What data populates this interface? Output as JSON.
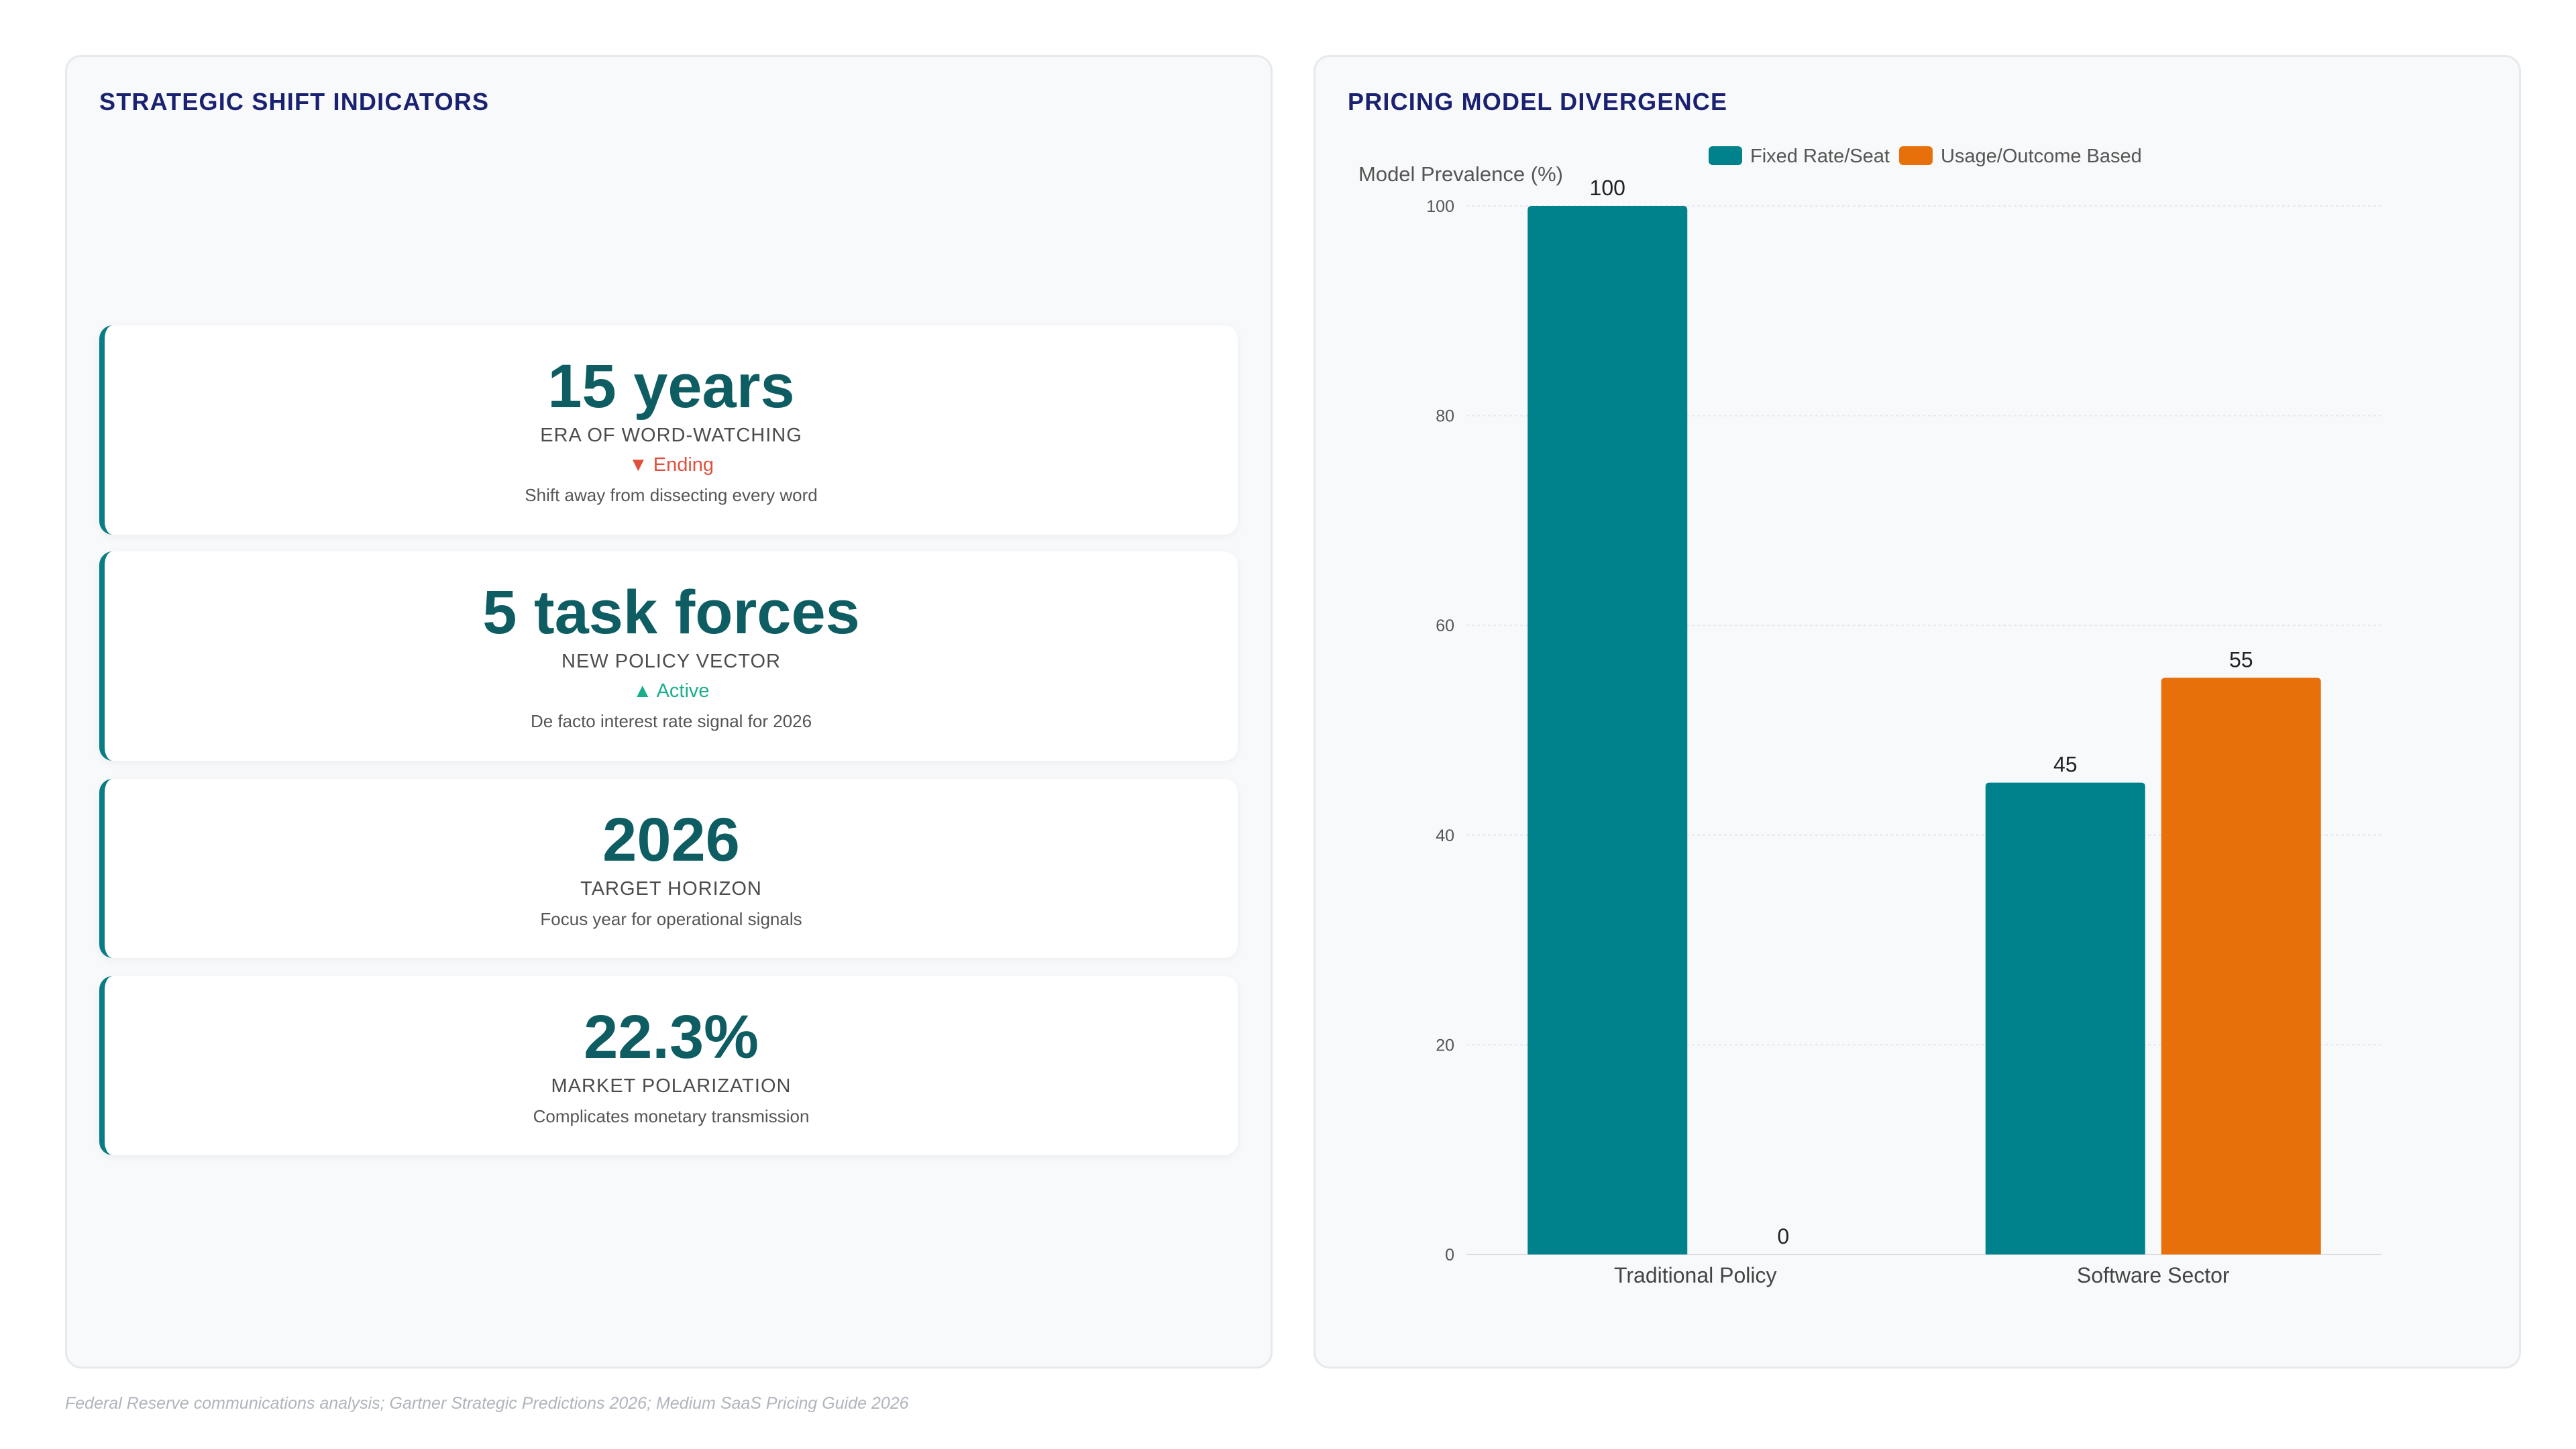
{
  "left_panel": {
    "title": "STRATEGIC SHIFT INDICATORS",
    "kpis": [
      {
        "value": "15 years",
        "label": "ERA OF WORD-WATCHING",
        "trend": "▼ Ending",
        "trend_direction": "down",
        "note": "Shift away from dissecting every word"
      },
      {
        "value": "5 task forces",
        "label": "NEW POLICY VECTOR",
        "trend": "▲ Active",
        "trend_direction": "up",
        "note": "De facto interest rate signal for 2026"
      },
      {
        "value": "2026",
        "label": "TARGET HORIZON",
        "note": "Focus year for operational signals"
      },
      {
        "value": "22.3%",
        "label": "MARKET POLARIZATION",
        "note": "Complicates monetary transmission"
      }
    ]
  },
  "right_panel": {
    "title": "PRICING MODEL DIVERGENCE"
  },
  "chart_data": {
    "type": "bar",
    "title": "PRICING MODEL DIVERGENCE",
    "categories": [
      "Traditional Policy",
      "Software Sector"
    ],
    "series": [
      {
        "name": "Fixed Rate/Seat",
        "color": "#00828c",
        "values": [
          100,
          45
        ]
      },
      {
        "name": "Usage/Outcome Based",
        "color": "#e8700b",
        "values": [
          0,
          55
        ]
      }
    ],
    "xlabel": "",
    "ylabel": "Model Prevalence (%)",
    "ylim": [
      0,
      100
    ],
    "yticks": [
      0,
      20,
      40,
      60,
      80,
      100
    ],
    "data_labels": true,
    "grid": true,
    "legend_position": "top-center"
  },
  "source": "Federal Reserve communications analysis; Gartner Strategic Predictions 2026; Medium SaaS Pricing Guide 2026"
}
